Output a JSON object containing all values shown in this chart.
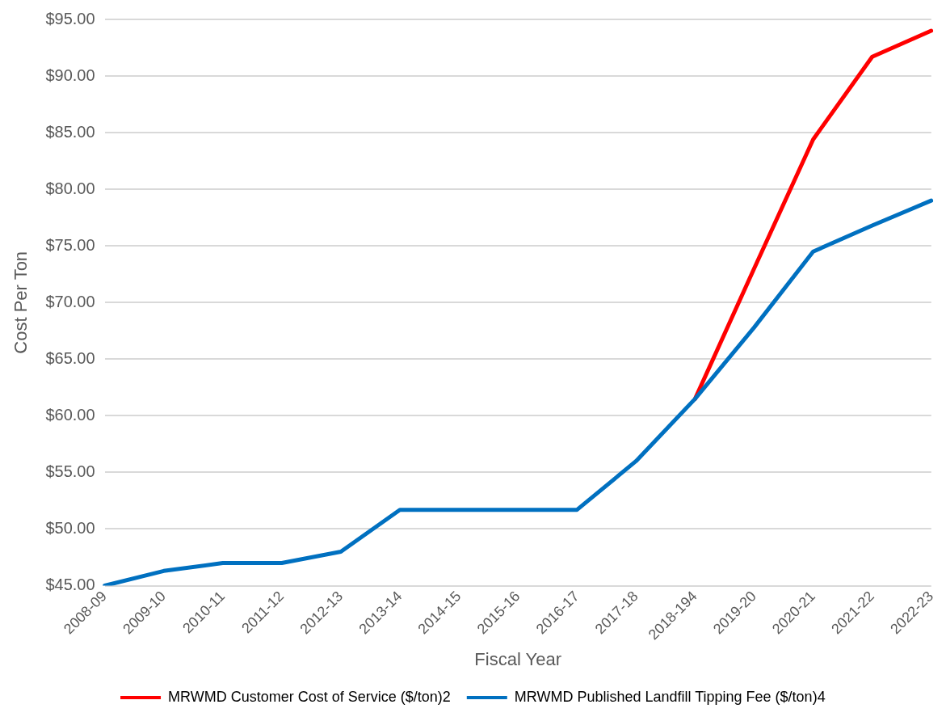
{
  "chart_data": {
    "type": "line",
    "xlabel": "Fiscal Year",
    "ylabel": "Cost Per Ton",
    "categories": [
      "2008-09",
      "2009-10",
      "2010-11",
      "2011-12",
      "2012-13",
      "2013-14",
      "2014-15",
      "2015-16",
      "2016-17",
      "2017-18",
      "2018-194",
      "2019-20",
      "2020-21",
      "2021-22",
      "2022-23"
    ],
    "series": [
      {
        "name": "MRWMD Customer Cost of Service ($/ton)2",
        "color": "#ff0000",
        "values": [
          null,
          null,
          null,
          null,
          null,
          null,
          null,
          null,
          null,
          null,
          61.5,
          73.0,
          84.4,
          91.7,
          94.0
        ]
      },
      {
        "name": "MRWMD Published Landfill Tipping Fee ($/ton)4",
        "color": "#0070c0",
        "values": [
          45,
          46.3,
          47,
          47,
          48,
          51.7,
          51.7,
          51.7,
          51.7,
          56,
          61.5,
          67.8,
          74.5,
          76.8,
          79.0
        ]
      }
    ],
    "ylim": [
      45,
      95
    ],
    "yticks": [
      {
        "value": 45,
        "label": "$45.00"
      },
      {
        "value": 50,
        "label": "$50.00"
      },
      {
        "value": 55,
        "label": "$55.00"
      },
      {
        "value": 60,
        "label": "$60.00"
      },
      {
        "value": 65,
        "label": "$65.00"
      },
      {
        "value": 70,
        "label": "$70.00"
      },
      {
        "value": 75,
        "label": "$75.00"
      },
      {
        "value": 80,
        "label": "$80.00"
      },
      {
        "value": 85,
        "label": "$85.00"
      },
      {
        "value": 90,
        "label": "$90.00"
      },
      {
        "value": 95,
        "label": "$95.00"
      }
    ],
    "grid": "y",
    "legend": "bottom",
    "marker": "none",
    "line_style": "solid"
  }
}
